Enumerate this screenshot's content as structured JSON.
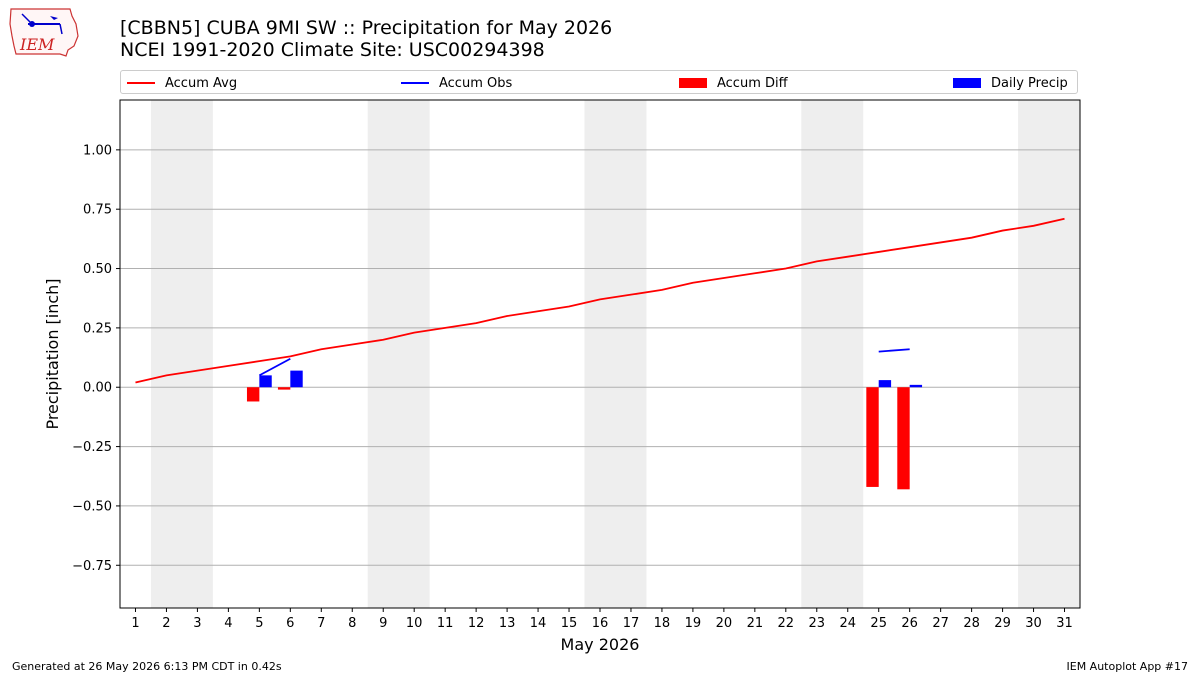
{
  "header": {
    "title_line1": "[CBBN5] CUBA 9MI SW :: Precipitation for May 2026",
    "title_line2": "NCEI 1991-2020 Climate Site: USC00294398"
  },
  "logo": {
    "text": "IEM",
    "icon": "iem-iowa-logo-icon"
  },
  "legend": [
    {
      "label": "Accum Avg",
      "color": "#ff0000",
      "kind": "line"
    },
    {
      "label": "Accum Obs",
      "color": "#0000ff",
      "kind": "line"
    },
    {
      "label": "Accum Diff",
      "color": "#ff0000",
      "kind": "bar"
    },
    {
      "label": "Daily Precip",
      "color": "#0000ff",
      "kind": "bar"
    }
  ],
  "footer": {
    "generated": "Generated at 26 May 2026 6:13 PM CDT in 0.42s",
    "app": "IEM Autoplot App #17"
  },
  "chart_data": {
    "type": "line",
    "xlabel": "May 2026",
    "ylabel": "Precipitation [inch]",
    "xlim": [
      0.5,
      31.5
    ],
    "ylim": [
      -0.93,
      1.21
    ],
    "x_ticks": [
      1,
      2,
      3,
      4,
      5,
      6,
      7,
      8,
      9,
      10,
      11,
      12,
      13,
      14,
      15,
      16,
      17,
      18,
      19,
      20,
      21,
      22,
      23,
      24,
      25,
      26,
      27,
      28,
      29,
      30,
      31
    ],
    "y_ticks": [
      -0.75,
      -0.5,
      -0.25,
      0.0,
      0.25,
      0.5,
      0.75,
      1.0
    ],
    "y_tick_labels": [
      "−0.75",
      "−0.50",
      "−0.25",
      "0.00",
      "0.25",
      "0.50",
      "0.75",
      "1.00"
    ],
    "grid": "y",
    "weekend_shading": [
      [
        1.5,
        3.5
      ],
      [
        8.5,
        10.5
      ],
      [
        15.5,
        17.5
      ],
      [
        22.5,
        24.5
      ],
      [
        29.5,
        31.5
      ]
    ],
    "series": [
      {
        "name": "Accum Avg",
        "kind": "line",
        "color": "#ff0000",
        "x": [
          1,
          2,
          3,
          4,
          5,
          6,
          7,
          8,
          9,
          10,
          11,
          12,
          13,
          14,
          15,
          16,
          17,
          18,
          19,
          20,
          21,
          22,
          23,
          24,
          25,
          26,
          27,
          28,
          29,
          30,
          31
        ],
        "values": [
          0.02,
          0.05,
          0.07,
          0.09,
          0.11,
          0.13,
          0.16,
          0.18,
          0.2,
          0.23,
          0.25,
          0.27,
          0.3,
          0.32,
          0.34,
          0.37,
          0.39,
          0.41,
          0.44,
          0.46,
          0.48,
          0.5,
          0.53,
          0.55,
          0.57,
          0.59,
          0.61,
          0.63,
          0.66,
          0.68,
          0.71
        ]
      },
      {
        "name": "Accum Obs",
        "kind": "line",
        "color": "#0000ff",
        "segments": [
          {
            "x": [
              5,
              6
            ],
            "values": [
              0.05,
              0.12
            ]
          },
          {
            "x": [
              25,
              26
            ],
            "values": [
              0.15,
              0.16
            ]
          }
        ]
      },
      {
        "name": "Accum Diff",
        "kind": "bar",
        "color": "#ff0000",
        "x": [
          5,
          6,
          25,
          26
        ],
        "values": [
          -0.06,
          -0.01,
          -0.42,
          -0.43
        ]
      },
      {
        "name": "Daily Precip",
        "kind": "bar",
        "color": "#0000ff",
        "x": [
          5,
          6,
          25,
          26
        ],
        "values": [
          0.05,
          0.07,
          0.03,
          0.01
        ]
      }
    ]
  }
}
